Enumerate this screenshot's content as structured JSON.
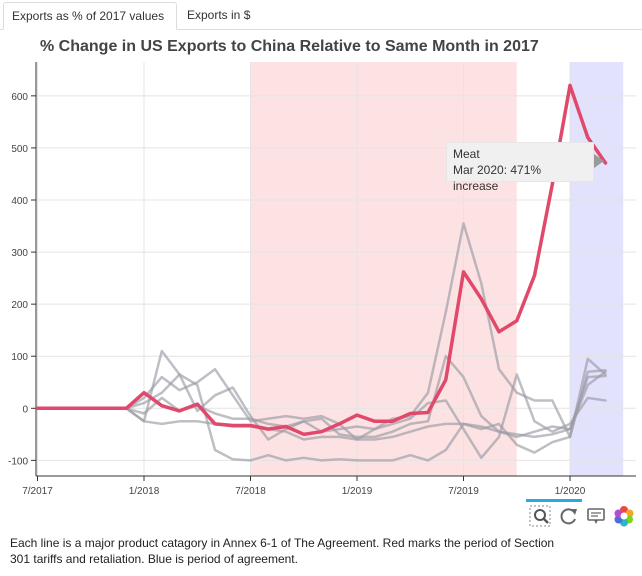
{
  "tabs": [
    {
      "label": "Exports as % of 2017 values",
      "active": true
    },
    {
      "label": "Exports in $",
      "active": false
    }
  ],
  "tooltip": {
    "title": "Meat",
    "text": "Mar 2020: 471% increase"
  },
  "caption": "Each line is a major product catagory in Annex 6-1 of The Agreement. Red marks the period of Section 301 tariffs and retaliation. Blue is period of agreement.",
  "toolbar": [
    {
      "icon": "zoom-icon",
      "active": true
    },
    {
      "icon": "reset-icon",
      "active": true
    },
    {
      "icon": "hover-icon",
      "active": false
    },
    {
      "icon": "bokeh-logo-icon",
      "active": false
    }
  ],
  "chart_data": {
    "type": "line",
    "title": "% Change in US Exports to China Relative to Same Month in 2017",
    "xlabel": "",
    "ylabel": "",
    "x": [
      "2017-07",
      "2017-08",
      "2017-09",
      "2017-10",
      "2017-11",
      "2017-12",
      "2018-01",
      "2018-02",
      "2018-03",
      "2018-04",
      "2018-05",
      "2018-06",
      "2018-07",
      "2018-08",
      "2018-09",
      "2018-10",
      "2018-11",
      "2018-12",
      "2019-01",
      "2019-02",
      "2019-03",
      "2019-04",
      "2019-05",
      "2019-06",
      "2019-07",
      "2019-08",
      "2019-09",
      "2019-10",
      "2019-11",
      "2019-12",
      "2020-01",
      "2020-02",
      "2020-03"
    ],
    "x_ticks": [
      "7/2017",
      "1/2018",
      "7/2018",
      "1/2019",
      "7/2019",
      "1/2020"
    ],
    "y_ticks": [
      -100,
      0,
      100,
      200,
      300,
      400,
      500,
      600
    ],
    "ylim": [
      -130,
      665
    ],
    "grid": true,
    "bands": [
      {
        "from": "2018-07",
        "to": "2019-10",
        "color": "#fde2e3"
      },
      {
        "from": "2020-01",
        "to": "2020-04",
        "color": "#e2e2fd"
      }
    ],
    "highlight": {
      "name": "Meat",
      "color": "#e0496b"
    },
    "other_color": "#9b9ba6",
    "series": [
      {
        "name": "Meat",
        "values": [
          0,
          0,
          0,
          0,
          0,
          0,
          30,
          5,
          -5,
          8,
          -30,
          -33,
          -33,
          -40,
          -35,
          -50,
          -45,
          -30,
          -13,
          -25,
          -25,
          -10,
          -8,
          55,
          262,
          210,
          147,
          168,
          255,
          430,
          620,
          520,
          471
        ]
      },
      {
        "values": [
          0,
          0,
          0,
          0,
          0,
          0,
          -25,
          -30,
          -25,
          -25,
          -30,
          -35,
          -35,
          -40,
          -45,
          -60,
          -55,
          -55,
          -60,
          -60,
          -55,
          -45,
          -35,
          -30,
          -30,
          -35,
          -45,
          -50,
          -55,
          -50,
          -40,
          60,
          62
        ]
      },
      {
        "values": [
          0,
          0,
          0,
          0,
          0,
          0,
          -25,
          110,
          65,
          45,
          -80,
          -98,
          -100,
          -90,
          -100,
          -95,
          -100,
          -98,
          -100,
          -100,
          -100,
          -90,
          -100,
          -80,
          -30,
          -40,
          -30,
          -70,
          -85,
          -65,
          -55,
          95,
          65
        ]
      },
      {
        "values": [
          0,
          0,
          0,
          0,
          0,
          0,
          -10,
          20,
          -5,
          5,
          -10,
          -20,
          -20,
          -30,
          -35,
          -25,
          -20,
          -50,
          -55,
          -55,
          -45,
          -30,
          -25,
          100,
          60,
          -15,
          -45,
          -55,
          -45,
          -35,
          -40,
          45,
          70
        ]
      },
      {
        "values": [
          0,
          0,
          0,
          0,
          0,
          0,
          20,
          60,
          35,
          50,
          75,
          25,
          -25,
          -20,
          -15,
          -20,
          -15,
          -30,
          -60,
          -40,
          -20,
          -15,
          30,
          185,
          355,
          240,
          75,
          30,
          15,
          15,
          -55,
          70,
          73
        ]
      },
      {
        "values": [
          0,
          0,
          0,
          0,
          0,
          0,
          10,
          30,
          65,
          -5,
          25,
          40,
          -15,
          -60,
          -40,
          -25,
          -45,
          -40,
          -35,
          -40,
          -30,
          -20,
          10,
          15,
          -40,
          -95,
          -55,
          65,
          -25,
          -45,
          -30,
          20,
          15
        ]
      }
    ]
  }
}
